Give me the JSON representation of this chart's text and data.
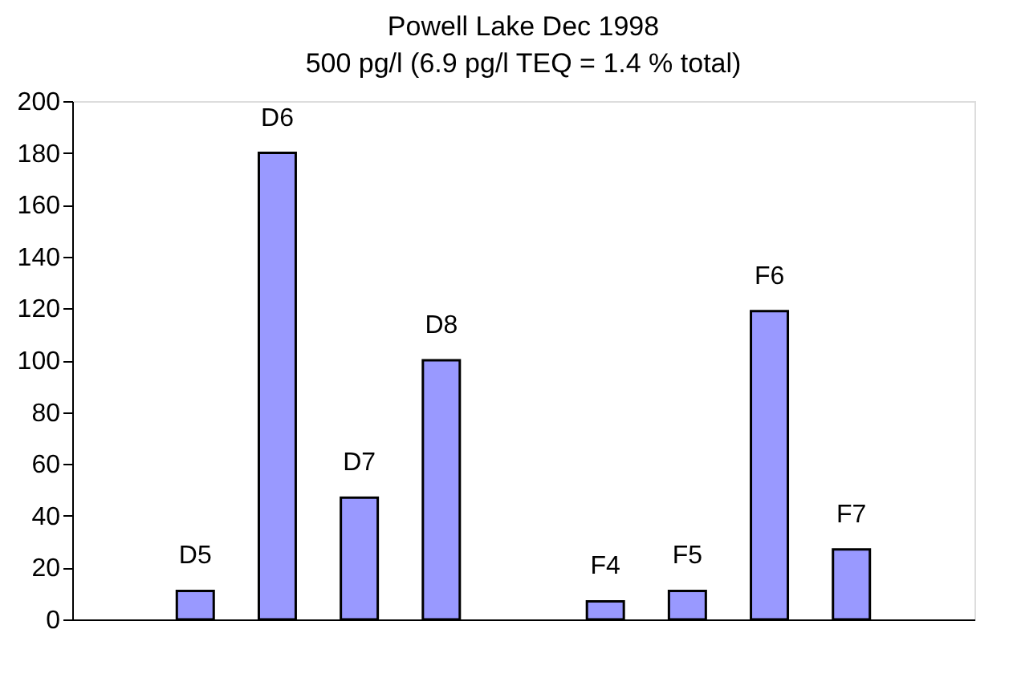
{
  "chart_data": {
    "type": "bar",
    "title": "Powell Lake Dec 1998",
    "subtitle": "500 pg/l (6.9 pg/l TEQ = 1.4 % total)",
    "categories": [
      null,
      "D5",
      "D6",
      "D7",
      "D8",
      null,
      "F4",
      "F5",
      "F6",
      "F7",
      null
    ],
    "values": [
      null,
      11,
      180,
      47,
      100,
      null,
      7,
      11,
      119,
      27,
      null
    ],
    "color": "#9999ff",
    "ylim": [
      0,
      200
    ],
    "yticks": [
      0,
      20,
      40,
      60,
      80,
      100,
      120,
      140,
      160,
      180,
      200
    ],
    "grid": false,
    "tick_labels": "y"
  }
}
